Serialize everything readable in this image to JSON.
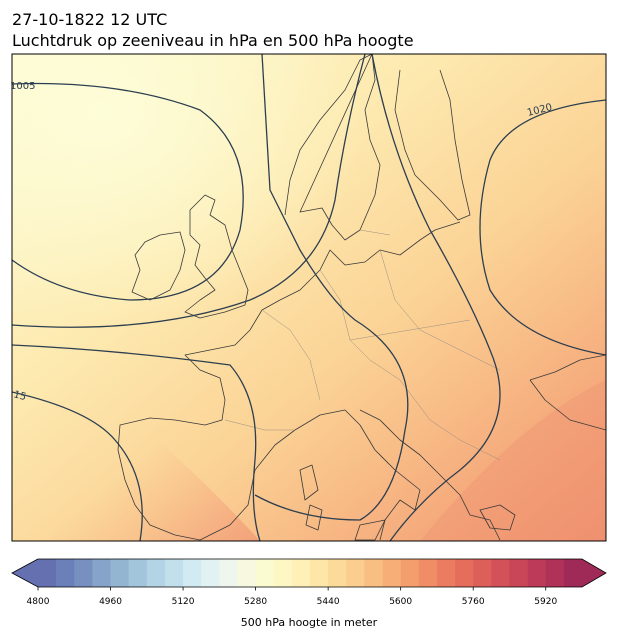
{
  "header": {
    "title_line1": "27-10-1822 12 UTC",
    "title_line2": "Luchtdruk op zeeniveau in hPa en 500 hPa hoogte"
  },
  "contour_labels": [
    "1005",
    "1020",
    "15"
  ],
  "colorbar": {
    "label": "500 hPa hoogte in meter",
    "lim": [
      4800,
      6000
    ],
    "ticks": [
      4800,
      4960,
      5120,
      5280,
      5440,
      5600,
      5760,
      5920
    ],
    "colors": [
      "#6470b0",
      "#6b7fb8",
      "#7890c0",
      "#86a3c9",
      "#93b5d2",
      "#a2c5dc",
      "#b2d4e5",
      "#c2e0ec",
      "#d2eaf1",
      "#e2f2f3",
      "#eef6ee",
      "#f6f9e0",
      "#fbfbd2",
      "#fdf7c4",
      "#fef0b6",
      "#fde6a8",
      "#fcda9a",
      "#fbcd8e",
      "#f9be82",
      "#f7ae77",
      "#f49e6e",
      "#f08d66",
      "#eb7c60",
      "#e46d5c",
      "#dc5f5a",
      "#d35259",
      "#c84658",
      "#bd3b58",
      "#b03258",
      "#a02a57"
    ]
  }
}
